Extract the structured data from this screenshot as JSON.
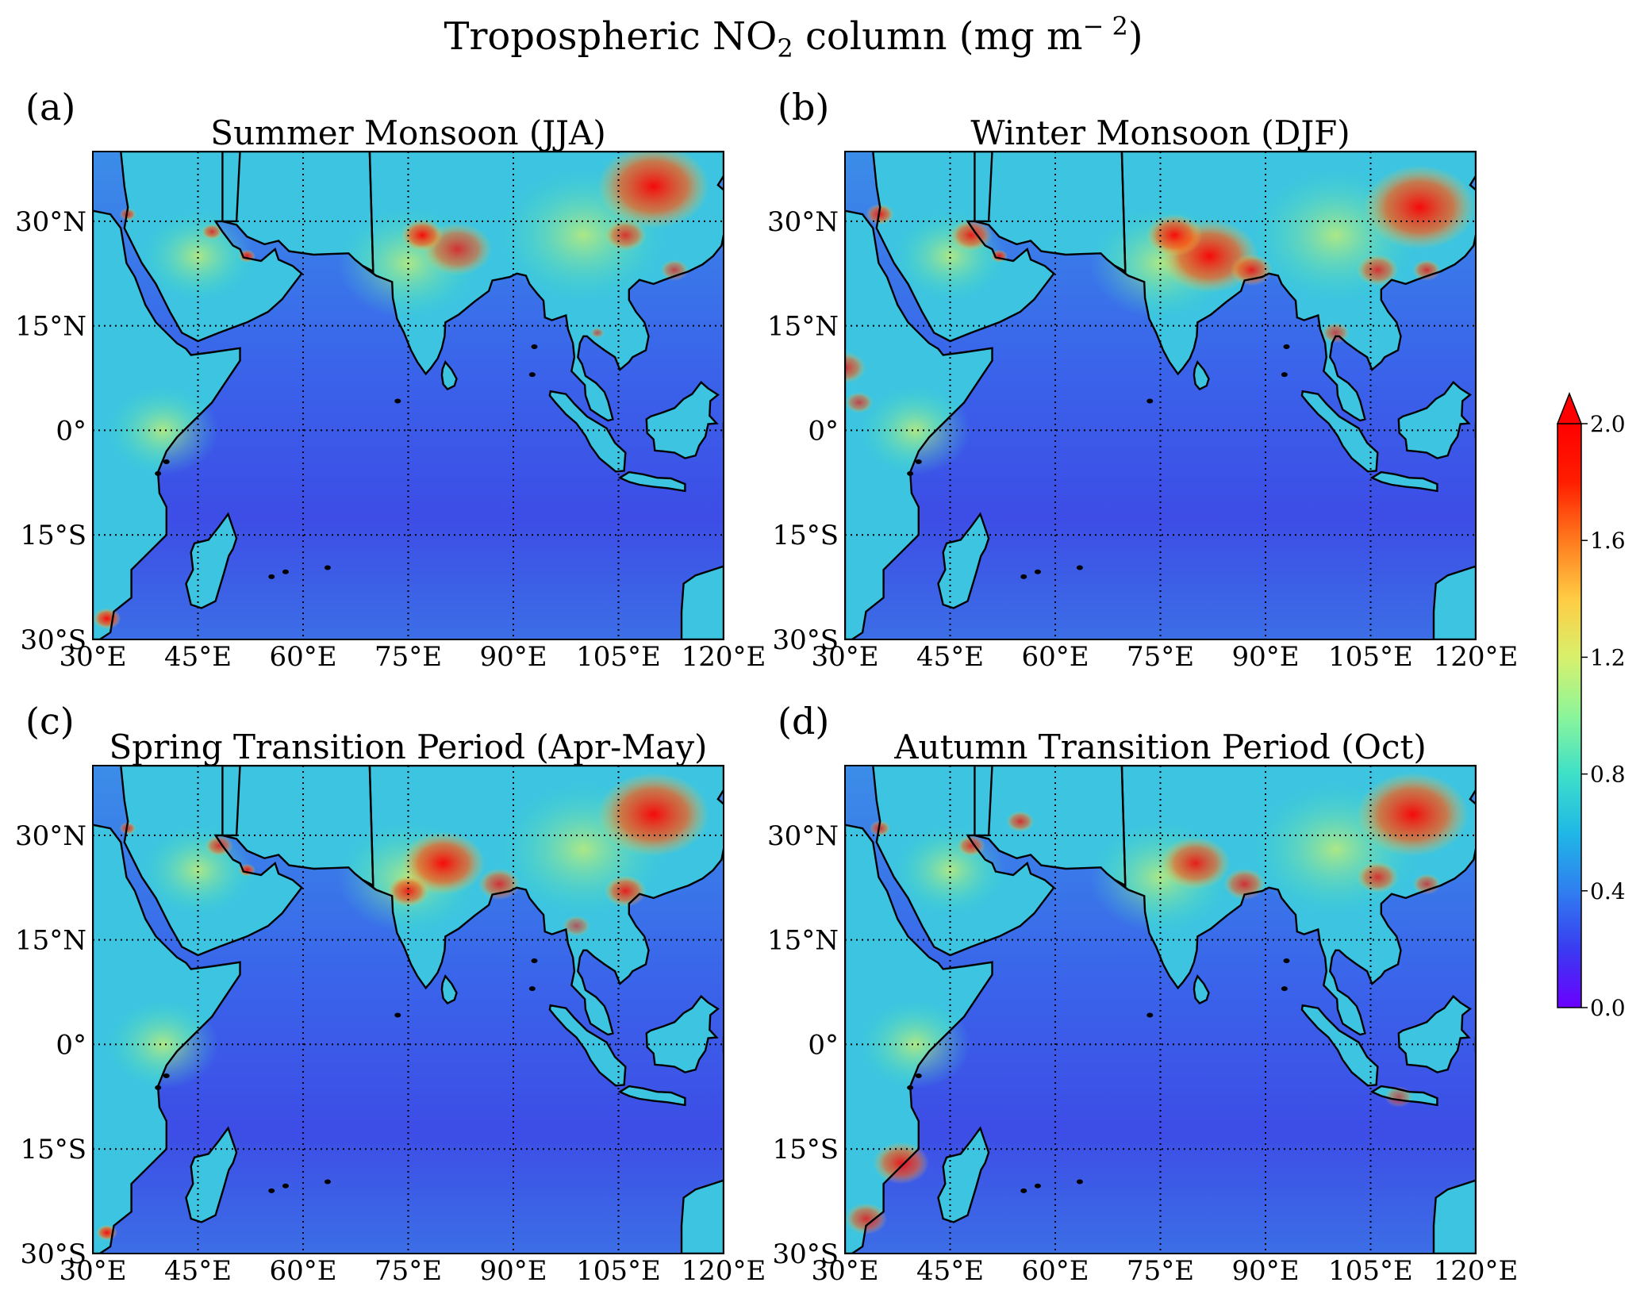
{
  "figure": {
    "title_main": "Tropospheric NO",
    "title_sub": "2",
    "title_unit": " column (mg m",
    "title_sup": "− 2",
    "title_close": ")"
  },
  "panels": [
    {
      "id": "a",
      "letter": "(a)",
      "title": "Summer Monsoon (JJA)"
    },
    {
      "id": "b",
      "letter": "(b)",
      "title": "Winter Monsoon (DJF)"
    },
    {
      "id": "c",
      "letter": "(c)",
      "title": "Spring Transition Period (Apr-May)"
    },
    {
      "id": "d",
      "letter": "(d)",
      "title": "Autumn Transition Period (Oct)"
    }
  ],
  "axes": {
    "lon_ticks": [
      "30°E",
      "45°E",
      "60°E",
      "75°E",
      "90°E",
      "105°E",
      "120°E"
    ],
    "lat_ticks": [
      "30°N",
      "15°N",
      "0°",
      "15°S",
      "30°S"
    ],
    "lon_range": [
      30,
      120
    ],
    "lat_range": [
      -30,
      40
    ],
    "gridlines": "dotted"
  },
  "colorbar": {
    "ticks": [
      "2.0",
      "1.6",
      "1.2",
      "0.8",
      "0.4",
      "0.0"
    ],
    "range": [
      0.0,
      2.0
    ],
    "extend": "max",
    "colormap": [
      "#6a00ff",
      "#3a3bf0",
      "#2f7ff0",
      "#20b8e6",
      "#3ee0c8",
      "#8cf59a",
      "#d8f06c",
      "#ffcc44",
      "#ff7a1e",
      "#ff1e00",
      "#ff0000"
    ]
  },
  "colors": {
    "ocean_low": "#3a4ee8",
    "ocean_mid": "#2f7ff0",
    "land_base": "#2ec4e6",
    "land_high": "#ff2a10",
    "coast": "#000000"
  }
}
